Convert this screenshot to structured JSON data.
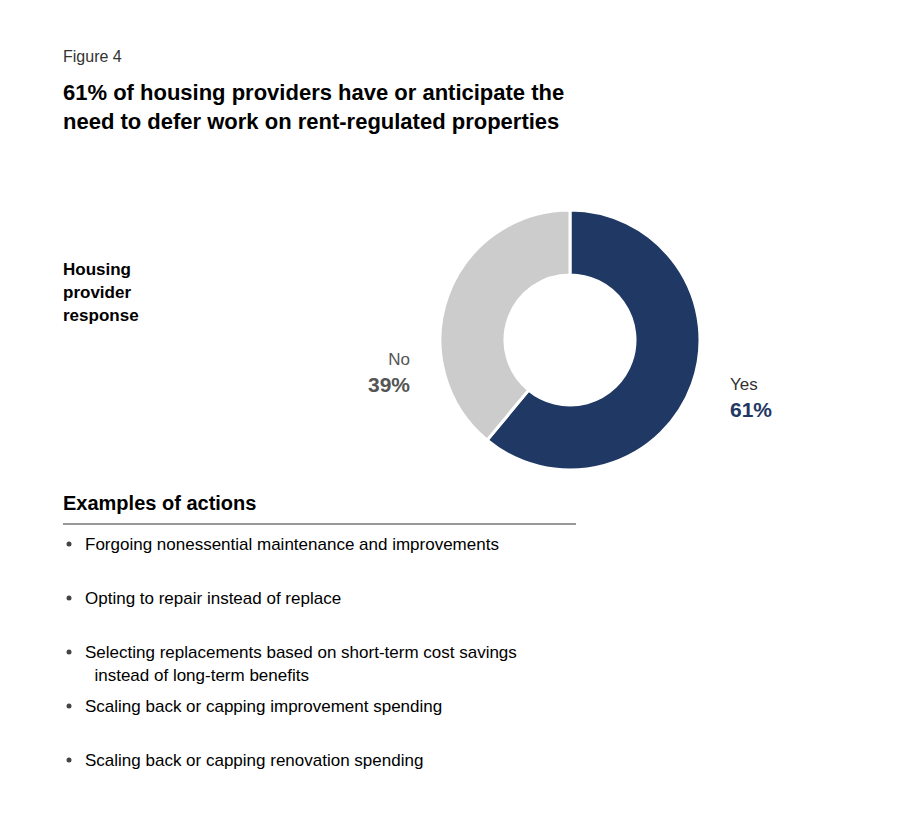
{
  "chart_data": {
    "type": "pie",
    "title": "61% of housing providers have or anticipate the\nneed to defer work on rent-regulated properties",
    "categories": [
      "Yes",
      "No"
    ],
    "values": [
      61,
      39
    ],
    "value_labels": [
      "61%",
      "39%"
    ],
    "colors": [
      "#1F3864",
      "#CCCCCC"
    ],
    "data_labels": true,
    "annotations": [
      "Figure 4",
      "Housing\nprovider\nresponse",
      "Examples of actions",
      "Forgoing nonessential maintenance and improvements",
      "Opting to repair instead of replace",
      "Selecting replacements based on short-term cost savings\n  instead of long-term benefits",
      "Scaling back or capping improvement spending",
      "Scaling back or capping renovation spending"
    ]
  }
}
